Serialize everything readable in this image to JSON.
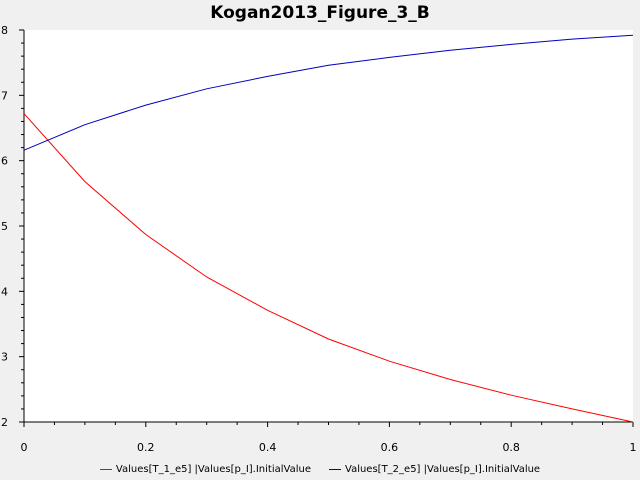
{
  "chart_data": {
    "type": "line",
    "title": "Kogan2013_Figure_3_B",
    "xlabel": "",
    "ylabel": "",
    "xlim": [
      0,
      1
    ],
    "ylim": [
      2,
      8
    ],
    "x_ticks": [
      0,
      0.2,
      0.4,
      0.6,
      0.8,
      1
    ],
    "x_tick_labels": [
      "0",
      "0.2",
      "0.4",
      "0.6",
      "0.8",
      "1"
    ],
    "y_ticks": [
      2,
      3,
      4,
      5,
      6,
      7,
      8
    ],
    "y_tick_labels": [
      "2",
      "3",
      "4",
      "5",
      "6",
      "7",
      "8"
    ],
    "grid": false,
    "legend_position": "bottom",
    "series": [
      {
        "name": "Values[T_1_e5] |Values[p_I].InitialValue",
        "color": "#ff0000",
        "x": [
          0,
          0.1,
          0.2,
          0.3,
          0.4,
          0.5,
          0.6,
          0.7,
          0.8,
          0.9,
          1
        ],
        "values": [
          6.72,
          5.68,
          4.87,
          4.22,
          3.71,
          3.27,
          2.93,
          2.65,
          2.41,
          2.2,
          2.0
        ]
      },
      {
        "name": "Values[T_2_e5] |Values[p_I].InitialValue",
        "color": "#0000c0",
        "x": [
          0,
          0.1,
          0.2,
          0.3,
          0.4,
          0.5,
          0.6,
          0.7,
          0.8,
          0.9,
          1
        ],
        "values": [
          6.16,
          6.55,
          6.85,
          7.1,
          7.29,
          7.46,
          7.58,
          7.69,
          7.78,
          7.86,
          7.92
        ]
      }
    ]
  }
}
